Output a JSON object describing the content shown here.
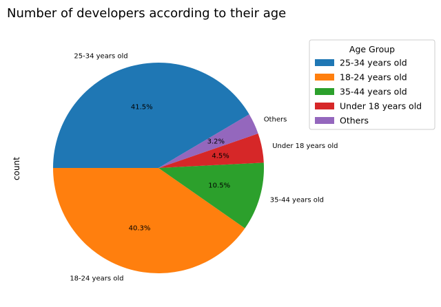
{
  "chart_data": {
    "type": "pie",
    "title": "Number of developers according to their age",
    "ylabel": "count",
    "legend_title": "Age Group",
    "legend_position": "upper-right-outside",
    "slices": [
      {
        "label": "25-34 years old",
        "value": 41.5,
        "pct_label": "41.5%",
        "color": "#1f77b4"
      },
      {
        "label": "18-24 years old",
        "value": 40.3,
        "pct_label": "40.3%",
        "color": "#ff7f0e"
      },
      {
        "label": "35-44 years old",
        "value": 10.5,
        "pct_label": "10.5%",
        "color": "#2ca02c"
      },
      {
        "label": "Under 18 years old",
        "value": 4.5,
        "pct_label": "4.5%",
        "color": "#d62728"
      },
      {
        "label": "Others",
        "value": 3.2,
        "pct_label": "3.2%",
        "color": "#9467bd"
      }
    ]
  }
}
